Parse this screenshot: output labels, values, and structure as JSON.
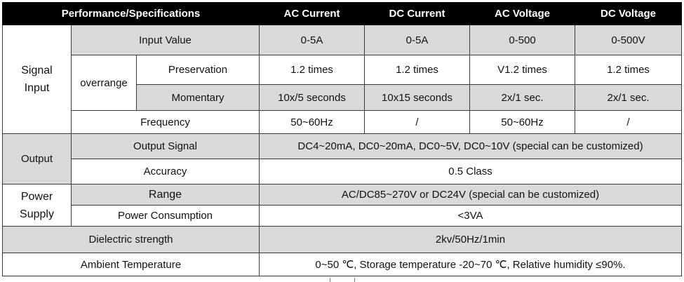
{
  "header": {
    "title": "Performance/Specifications",
    "col1": "AC Current",
    "col2": "DC Current",
    "col3": "AC Voltage",
    "col4": "DC Voltage"
  },
  "signal_input": {
    "label_line1": "Signal",
    "label_line2": "Input",
    "input_value": {
      "label": "Input Value",
      "values": [
        "0-5A",
        "0-5A",
        "0-500",
        "0-500V"
      ]
    },
    "overrange": {
      "label": "overrange",
      "preservation": {
        "label": "Preservation",
        "values": [
          "1.2 times",
          "1.2 times",
          "V1.2 times",
          "1.2 times"
        ]
      },
      "momentary": {
        "label": "Momentary",
        "values": [
          "10x/5 seconds",
          "10x15 seconds",
          "2x/1 sec.",
          "2x/1 sec."
        ]
      }
    },
    "frequency": {
      "label": "Frequency",
      "values": [
        "50~60Hz",
        "/",
        "50~60Hz",
        "/"
      ]
    }
  },
  "output": {
    "label": "Output",
    "output_signal": {
      "label": "Output Signal",
      "value": "DC4~20mA, DC0~20mA, DC0~5V, DC0~10V (special can be customized)"
    },
    "accuracy": {
      "label": "Accuracy",
      "value": "0.5 Class"
    }
  },
  "power_supply": {
    "label_line1": "Power",
    "label_line2": "Supply",
    "range": {
      "label": "Range",
      "value": "AC/DC85~270V or DC24V (special can be customized)"
    },
    "consumption": {
      "label": "Power Consumption",
      "value": "<3VA"
    }
  },
  "dielectric": {
    "label": "Dielectric strength",
    "value": "2kv/50Hz/1min"
  },
  "ambient": {
    "label": "Ambient Temperature",
    "value": "0~50 ℃, Storage temperature -20~70 ℃, Relative humidity ≤90%."
  }
}
